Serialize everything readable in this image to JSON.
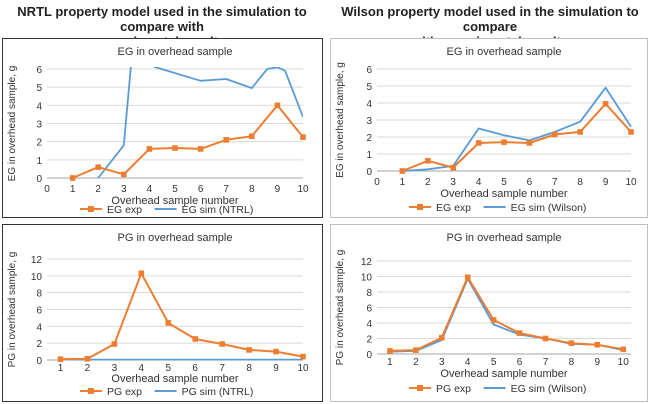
{
  "headings": {
    "left": [
      "NRTL property model used in the simulation to compare with",
      "experimental results"
    ],
    "right": [
      "Wilson property model used in the simulation to compare",
      "with experimental results"
    ]
  },
  "colors": {
    "exp": "#ED7D31",
    "sim": "#5B9BD5",
    "grid": "#d9d9d9",
    "axis": "#a6a6a6",
    "frame": "#333333"
  },
  "chart_data": [
    {
      "id": "nrtl-eg",
      "type": "line",
      "title": "EG in overhead sample",
      "xlabel": "Overhead sample number",
      "ylabel": "EG in overhead sample, g",
      "xlim": [
        0,
        10
      ],
      "ylim": [
        0,
        6
      ],
      "xticks": [
        "0",
        "1",
        "2",
        "3",
        "4",
        "5",
        "6",
        "7",
        "8",
        "9",
        "10"
      ],
      "yticks": [
        "0",
        "1",
        "2",
        "3",
        "4",
        "5",
        "6"
      ],
      "series": [
        {
          "name": "EG exp",
          "role": "exp",
          "x": [
            1,
            2,
            3,
            4,
            5,
            6,
            7,
            8,
            9,
            10
          ],
          "values": [
            0.0,
            0.6,
            0.2,
            1.6,
            1.65,
            1.6,
            2.1,
            2.3,
            4.0,
            2.25
          ]
        },
        {
          "name": "EG sim (NTRL)",
          "role": "sim",
          "x": [
            2,
            3,
            3.3,
            6,
            7,
            8,
            8.6,
            9,
            9.3,
            10
          ],
          "values": [
            0.0,
            1.8,
            6.5,
            5.35,
            5.45,
            4.95,
            6.0,
            6.1,
            5.9,
            3.35
          ]
        }
      ],
      "legend": "bottom",
      "clip": true
    },
    {
      "id": "wilson-eg",
      "type": "line",
      "title": "EG in overhead sample",
      "xlabel": "Overhead sample number",
      "ylabel": "EG in overhead sample, g",
      "xlim": [
        0,
        10
      ],
      "ylim": [
        0,
        6
      ],
      "xticks": [
        "0",
        "1",
        "2",
        "3",
        "4",
        "5",
        "6",
        "7",
        "8",
        "9",
        "10"
      ],
      "yticks": [
        "0",
        "1",
        "2",
        "3",
        "4",
        "5",
        "6"
      ],
      "series": [
        {
          "name": "EG exp",
          "role": "exp",
          "x": [
            1,
            2,
            3,
            4,
            5,
            6,
            7,
            8,
            9,
            10
          ],
          "values": [
            0.0,
            0.6,
            0.2,
            1.65,
            1.7,
            1.65,
            2.15,
            2.3,
            3.95,
            2.3
          ]
        },
        {
          "name": "EG sim (Wilson)",
          "role": "sim",
          "x": [
            1,
            2,
            3,
            4,
            5,
            6,
            7,
            8,
            9,
            10
          ],
          "values": [
            0.0,
            0.1,
            0.3,
            2.5,
            2.1,
            1.8,
            2.3,
            2.9,
            4.9,
            2.6
          ]
        }
      ],
      "legend": "bottom",
      "clip": false
    },
    {
      "id": "nrtl-pg",
      "type": "line",
      "title": "PG in overhead sample",
      "xlabel": "Overhead sample number",
      "ylabel": "PG in overhead sample, g",
      "xlim": [
        0.5,
        10
      ],
      "ylim": [
        0,
        12
      ],
      "xticks": [
        "1",
        "2",
        "3",
        "4",
        "5",
        "6",
        "7",
        "8",
        "9",
        "10"
      ],
      "yticks": [
        "0",
        "2",
        "4",
        "6",
        "8",
        "10",
        "12"
      ],
      "series": [
        {
          "name": "PG exp",
          "role": "exp",
          "x": [
            1,
            2,
            3,
            4,
            5,
            6,
            7,
            8,
            9,
            10
          ],
          "values": [
            0.1,
            0.15,
            1.9,
            10.3,
            4.4,
            2.5,
            1.9,
            1.2,
            1.0,
            0.4
          ]
        },
        {
          "name": "PG sim (NTRL)",
          "role": "sim",
          "x": [
            1,
            2,
            3,
            4,
            5,
            6,
            7,
            8,
            9,
            10
          ],
          "values": [
            0.05,
            0.05,
            0.05,
            0.05,
            0.05,
            0.05,
            0.05,
            0.05,
            0.05,
            0.05
          ]
        }
      ],
      "legend": "bottom",
      "clip": false
    },
    {
      "id": "wilson-pg",
      "type": "line",
      "title": "PG in overhead sample",
      "xlabel": "Overhead sample number",
      "ylabel": "PG in overhead sample, g",
      "xlim": [
        0.5,
        10.3
      ],
      "ylim": [
        0,
        12
      ],
      "xticks": [
        "1",
        "2",
        "3",
        "4",
        "5",
        "6",
        "7",
        "8",
        "9",
        "10"
      ],
      "yticks": [
        "0",
        "2",
        "4",
        "6",
        "8",
        "10",
        "12"
      ],
      "series": [
        {
          "name": "PG exp",
          "role": "exp",
          "x": [
            1,
            2,
            3,
            4,
            5,
            6,
            7,
            8,
            9,
            10
          ],
          "values": [
            0.4,
            0.5,
            2.1,
            9.9,
            4.4,
            2.7,
            2.0,
            1.4,
            1.2,
            0.6
          ]
        },
        {
          "name": "EG sim (Wilson)",
          "role": "sim",
          "x": [
            1,
            2,
            3,
            4,
            5,
            6,
            7,
            8,
            9,
            10
          ],
          "values": [
            0.3,
            0.4,
            1.8,
            9.7,
            3.8,
            2.5,
            2.0,
            1.3,
            1.2,
            0.5
          ]
        }
      ],
      "legend": "bottom",
      "clip": false
    }
  ]
}
